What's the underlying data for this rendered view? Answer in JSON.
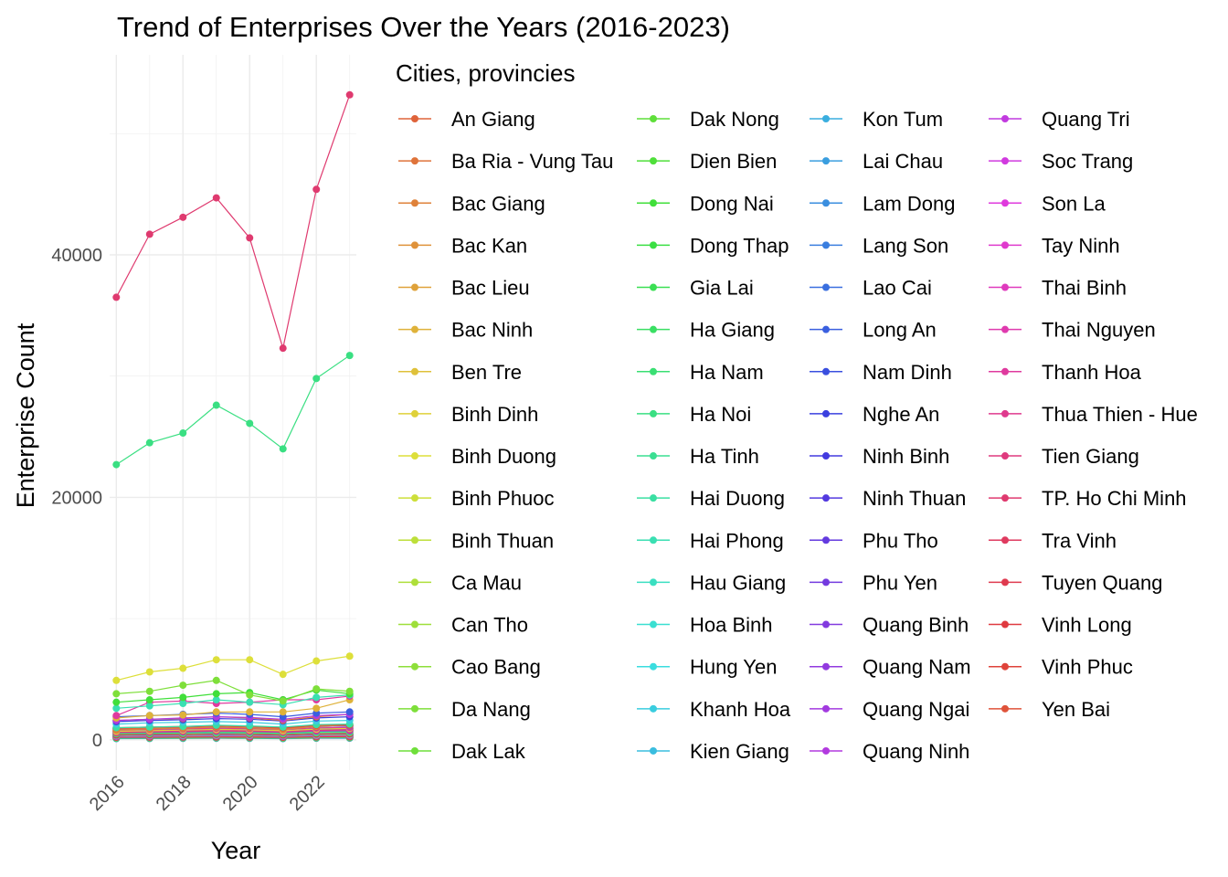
{
  "chart_data": {
    "type": "line",
    "title": "Trend of Enterprises Over the Years (2016-2023)",
    "xlabel": "Year",
    "ylabel": "Enterprise Count",
    "x": [
      2016,
      2017,
      2018,
      2019,
      2020,
      2021,
      2022,
      2023
    ],
    "x_ticks": [
      2016,
      2018,
      2020,
      2022
    ],
    "y_ticks": [
      0,
      20000,
      40000
    ],
    "ylim": [
      -2500,
      56500
    ],
    "xlim": [
      2015.8,
      2023.2
    ],
    "grid": true,
    "legend": {
      "title": "Cities, provincies",
      "placement": "right"
    },
    "series": [
      {
        "name": "An Giang",
        "values": [
          900,
          950,
          1000,
          1050,
          1000,
          950,
          1100,
          1200
        ]
      },
      {
        "name": "Ba Ria - Vung Tau",
        "values": [
          1600,
          1700,
          1750,
          1900,
          1800,
          1600,
          1900,
          2100
        ]
      },
      {
        "name": "Bac Giang",
        "values": [
          800,
          900,
          950,
          1050,
          1000,
          850,
          1100,
          1250
        ]
      },
      {
        "name": "Bac Kan",
        "values": [
          150,
          150,
          160,
          170,
          160,
          140,
          170,
          180
        ]
      },
      {
        "name": "Bac Lieu",
        "values": [
          400,
          420,
          430,
          450,
          440,
          400,
          460,
          480
        ]
      },
      {
        "name": "Bac Ninh",
        "values": [
          1800,
          2000,
          2050,
          2300,
          2300,
          2300,
          2600,
          3300
        ]
      },
      {
        "name": "Ben Tre",
        "values": [
          500,
          520,
          540,
          560,
          550,
          500,
          580,
          600
        ]
      },
      {
        "name": "Binh Dinh",
        "values": [
          700,
          750,
          800,
          850,
          820,
          750,
          880,
          950
        ]
      },
      {
        "name": "Binh Duong",
        "values": [
          4900,
          5600,
          5900,
          6600,
          6600,
          5400,
          6500,
          6900
        ]
      },
      {
        "name": "Binh Phuoc",
        "values": [
          600,
          650,
          700,
          750,
          720,
          650,
          780,
          820
        ]
      },
      {
        "name": "Binh Thuan",
        "values": [
          550,
          580,
          600,
          650,
          620,
          560,
          680,
          700
        ]
      },
      {
        "name": "Ca Mau",
        "values": [
          350,
          370,
          380,
          400,
          390,
          350,
          410,
          430
        ]
      },
      {
        "name": "Can Tho",
        "values": [
          900,
          950,
          1000,
          1050,
          1000,
          900,
          1100,
          1150
        ]
      },
      {
        "name": "Cao Bang",
        "values": [
          150,
          160,
          170,
          180,
          170,
          150,
          180,
          190
        ]
      },
      {
        "name": "Da Nang",
        "values": [
          3800,
          4000,
          4500,
          4900,
          3700,
          3200,
          4200,
          4000
        ]
      },
      {
        "name": "Dak Lak",
        "values": [
          700,
          750,
          800,
          850,
          820,
          750,
          880,
          900
        ]
      },
      {
        "name": "Dak Nong",
        "values": [
          300,
          320,
          330,
          350,
          340,
          300,
          360,
          380
        ]
      },
      {
        "name": "Dien Bien",
        "values": [
          150,
          160,
          170,
          180,
          170,
          150,
          180,
          190
        ]
      },
      {
        "name": "Dong Nai",
        "values": [
          3100,
          3300,
          3500,
          3800,
          3900,
          3300,
          4100,
          3800
        ]
      },
      {
        "name": "Dong Thap",
        "values": [
          500,
          520,
          540,
          570,
          550,
          500,
          590,
          610
        ]
      },
      {
        "name": "Gia Lai",
        "values": [
          600,
          630,
          660,
          700,
          680,
          620,
          720,
          750
        ]
      },
      {
        "name": "Ha Giang",
        "values": [
          150,
          160,
          170,
          180,
          170,
          150,
          180,
          190
        ]
      },
      {
        "name": "Ha Nam",
        "values": [
          500,
          550,
          600,
          650,
          620,
          560,
          680,
          700
        ]
      },
      {
        "name": "Ha Noi",
        "values": [
          22700,
          24500,
          25300,
          27600,
          26100,
          24000,
          29800,
          31700
        ]
      },
      {
        "name": "Ha Tinh",
        "values": [
          500,
          520,
          540,
          570,
          550,
          500,
          590,
          610
        ]
      },
      {
        "name": "Hai Duong",
        "values": [
          1000,
          1050,
          1100,
          1200,
          1150,
          1050,
          1250,
          1300
        ]
      },
      {
        "name": "Hai Phong",
        "values": [
          2600,
          2800,
          3000,
          3300,
          3100,
          2900,
          3500,
          3700
        ]
      },
      {
        "name": "Hau Giang",
        "values": [
          250,
          260,
          270,
          290,
          280,
          250,
          300,
          310
        ]
      },
      {
        "name": "Hoa Binh",
        "values": [
          350,
          370,
          380,
          400,
          390,
          350,
          410,
          430
        ]
      },
      {
        "name": "Hung Yen",
        "values": [
          800,
          850,
          900,
          950,
          920,
          850,
          980,
          1020
        ]
      },
      {
        "name": "Khanh Hoa",
        "values": [
          1300,
          1400,
          1450,
          1500,
          1450,
          1300,
          1550,
          1600
        ]
      },
      {
        "name": "Kien Giang",
        "values": [
          900,
          950,
          1000,
          1050,
          1000,
          900,
          1100,
          1150
        ]
      },
      {
        "name": "Kon Tum",
        "values": [
          200,
          210,
          220,
          230,
          220,
          200,
          240,
          250
        ]
      },
      {
        "name": "Lai Chau",
        "values": [
          100,
          110,
          115,
          120,
          115,
          100,
          125,
          130
        ]
      },
      {
        "name": "Lam Dong",
        "values": [
          900,
          950,
          1000,
          1050,
          1000,
          900,
          1100,
          1150
        ]
      },
      {
        "name": "Lang Son",
        "values": [
          300,
          320,
          330,
          350,
          340,
          300,
          360,
          380
        ]
      },
      {
        "name": "Lao Cai",
        "values": [
          400,
          420,
          440,
          460,
          450,
          400,
          480,
          500
        ]
      },
      {
        "name": "Long An",
        "values": [
          1900,
          2000,
          2100,
          2200,
          2100,
          1900,
          2200,
          2300
        ]
      },
      {
        "name": "Nam Dinh",
        "values": [
          700,
          750,
          800,
          850,
          820,
          750,
          880,
          920
        ]
      },
      {
        "name": "Nghe An",
        "values": [
          1500,
          1600,
          1650,
          1750,
          1700,
          1550,
          1800,
          1900
        ]
      },
      {
        "name": "Ninh Binh",
        "values": [
          600,
          650,
          700,
          750,
          720,
          650,
          780,
          820
        ]
      },
      {
        "name": "Ninh Thuan",
        "values": [
          250,
          260,
          270,
          290,
          280,
          250,
          300,
          310
        ]
      },
      {
        "name": "Phu Tho",
        "values": [
          700,
          750,
          800,
          850,
          820,
          750,
          880,
          920
        ]
      },
      {
        "name": "Phu Yen",
        "values": [
          300,
          320,
          330,
          350,
          340,
          300,
          360,
          380
        ]
      },
      {
        "name": "Quang Binh",
        "values": [
          400,
          420,
          440,
          460,
          450,
          400,
          480,
          500
        ]
      },
      {
        "name": "Quang Nam",
        "values": [
          900,
          950,
          1000,
          1050,
          1000,
          900,
          1100,
          1150
        ]
      },
      {
        "name": "Quang Ngai",
        "values": [
          600,
          630,
          660,
          700,
          680,
          620,
          720,
          750
        ]
      },
      {
        "name": "Quang Ninh",
        "values": [
          1600,
          1700,
          1800,
          1900,
          1850,
          1700,
          2000,
          2100
        ]
      },
      {
        "name": "Quang Tri",
        "values": [
          300,
          320,
          330,
          350,
          340,
          300,
          360,
          380
        ]
      },
      {
        "name": "Soc Trang",
        "values": [
          300,
          320,
          330,
          350,
          340,
          300,
          360,
          380
        ]
      },
      {
        "name": "Son La",
        "values": [
          250,
          260,
          270,
          290,
          280,
          250,
          300,
          310
        ]
      },
      {
        "name": "Tay Ninh",
        "values": [
          700,
          750,
          800,
          850,
          820,
          750,
          880,
          920
        ]
      },
      {
        "name": "Thai Binh",
        "values": [
          600,
          650,
          700,
          750,
          720,
          650,
          780,
          820
        ]
      },
      {
        "name": "Thai Nguyen",
        "values": [
          700,
          750,
          800,
          850,
          820,
          750,
          880,
          920
        ]
      },
      {
        "name": "Thanh Hoa",
        "values": [
          2000,
          3100,
          3200,
          3000,
          3100,
          3300,
          3300,
          3600
        ]
      },
      {
        "name": "Thua Thien - Hue",
        "values": [
          800,
          850,
          900,
          950,
          920,
          850,
          980,
          1020
        ]
      },
      {
        "name": "Tien Giang",
        "values": [
          600,
          650,
          700,
          750,
          720,
          650,
          780,
          820
        ]
      },
      {
        "name": "TP. Ho Chi Minh",
        "values": [
          36500,
          41700,
          43100,
          44700,
          41400,
          32300,
          45400,
          53200
        ]
      },
      {
        "name": "Tra Vinh",
        "values": [
          250,
          260,
          270,
          290,
          280,
          250,
          300,
          310
        ]
      },
      {
        "name": "Tuyen Quang",
        "values": [
          200,
          210,
          220,
          230,
          220,
          200,
          240,
          250
        ]
      },
      {
        "name": "Vinh Long",
        "values": [
          400,
          420,
          440,
          460,
          450,
          400,
          480,
          500
        ]
      },
      {
        "name": "Vinh Phuc",
        "values": [
          1000,
          1050,
          1100,
          1150,
          1100,
          1000,
          1200,
          1250
        ]
      },
      {
        "name": "Yen Bai",
        "values": [
          250,
          260,
          270,
          290,
          280,
          250,
          300,
          310
        ]
      }
    ]
  }
}
